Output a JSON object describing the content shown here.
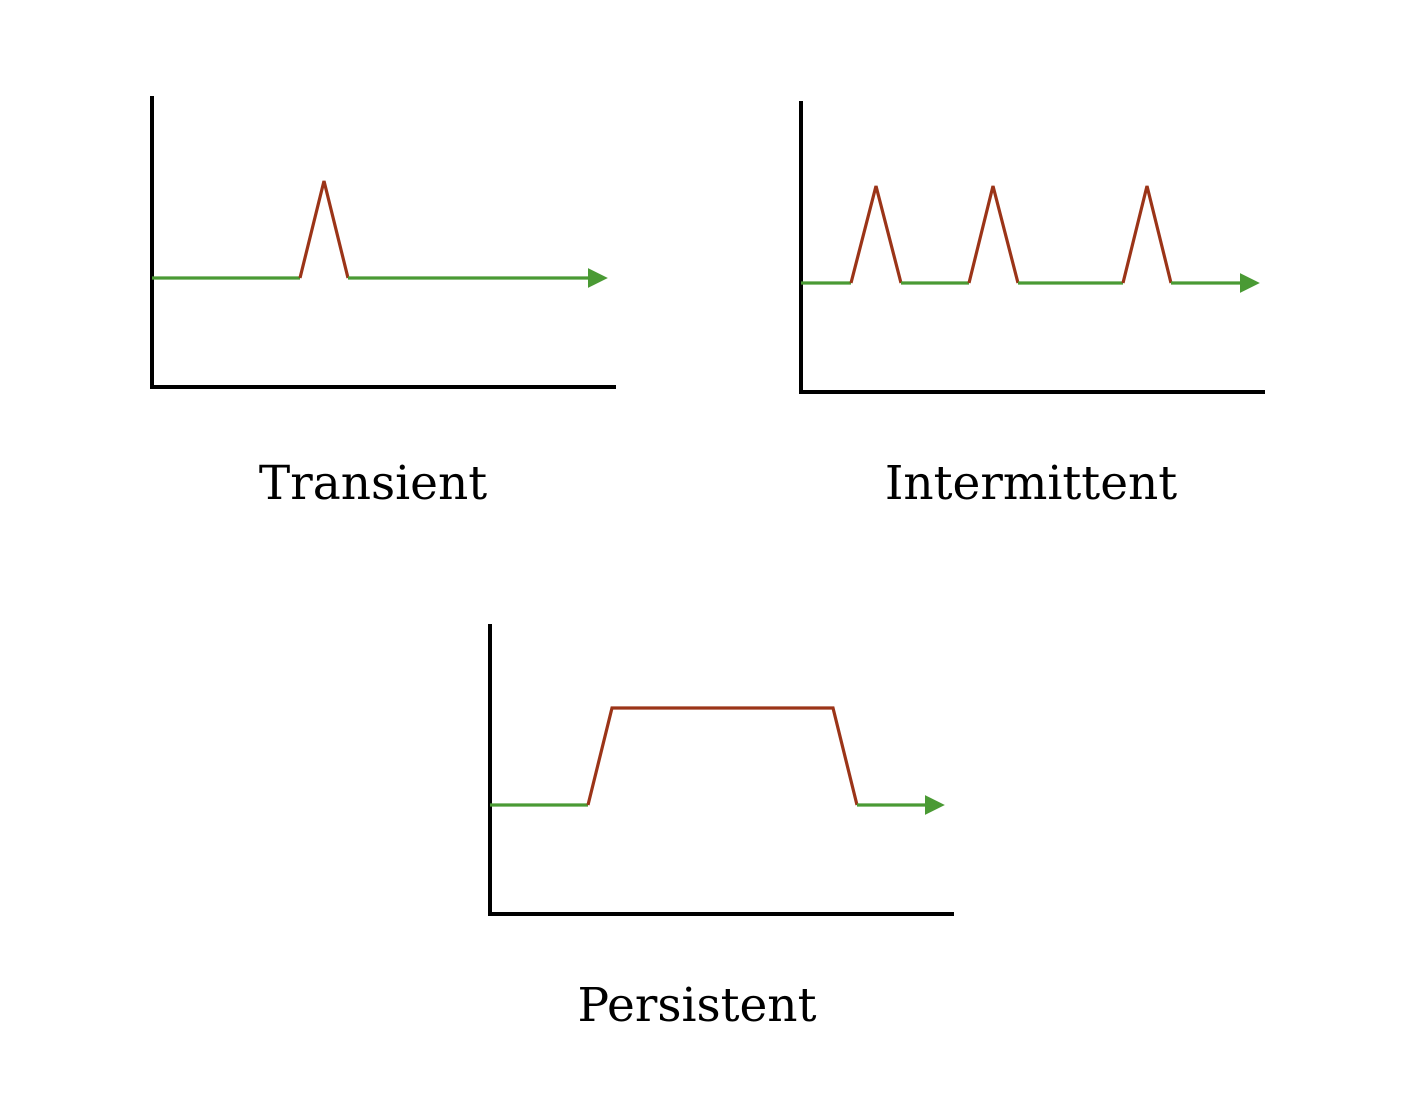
{
  "colors": {
    "normal": "#4a9a34",
    "fault": "#9b3418",
    "axis": "#000000",
    "background": "#ffffff"
  },
  "panels": [
    {
      "label": "Transient",
      "pattern": "single short spike",
      "segments": [
        "normal",
        "fault",
        "normal"
      ]
    },
    {
      "label": "Intermittent",
      "pattern": "three repeated short spikes",
      "segments": [
        "normal",
        "fault",
        "normal",
        "fault",
        "normal",
        "fault",
        "normal"
      ]
    },
    {
      "label": "Persistent",
      "pattern": "sustained plateau",
      "segments": [
        "normal",
        "fault",
        "normal"
      ]
    }
  ]
}
